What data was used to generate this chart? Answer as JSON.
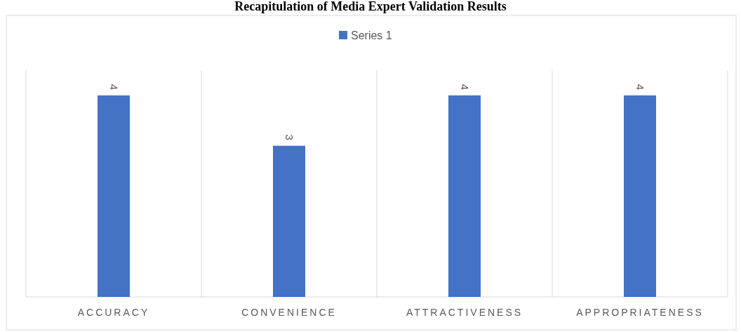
{
  "chart_data": {
    "type": "bar",
    "title": "Recapitulation of Media Expert Validation Results",
    "categories": [
      "ACCURACY",
      "CONVENIENCE",
      "ATTRACTIVENESS",
      "APPROPRIATENESS"
    ],
    "series": [
      {
        "name": "Series 1",
        "color": "#4472c4",
        "values": [
          4,
          3,
          4,
          4
        ]
      }
    ],
    "ylim": [
      0,
      4.5
    ],
    "tick_labels": "x",
    "data_labels": true,
    "grid": "x",
    "legend": "top"
  }
}
